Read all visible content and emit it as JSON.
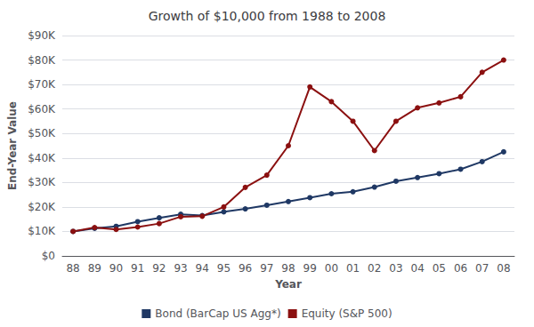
{
  "chart_data": {
    "type": "line",
    "title": "Growth of $10,000 from 1988 to 2008",
    "xlabel": "Year",
    "ylabel": "End-Year Value",
    "categories": [
      "88",
      "89",
      "90",
      "91",
      "92",
      "93",
      "94",
      "95",
      "96",
      "97",
      "98",
      "99",
      "00",
      "01",
      "02",
      "03",
      "04",
      "05",
      "06",
      "07",
      "08"
    ],
    "series": [
      {
        "name": "Bond (BarCap US Agg*)",
        "color": "#1f3864",
        "marker": "circle",
        "values": [
          10000,
          11290,
          12080,
          13990,
          15550,
          17000,
          16500,
          18000,
          19200,
          20700,
          22200,
          23800,
          25400,
          26200,
          28100,
          30500,
          32000,
          33600,
          35400,
          38500,
          42500
        ]
      },
      {
        "name": "Equity (S&P 500)",
        "color": "#8b1010",
        "marker": "circle",
        "values": [
          10000,
          11600,
          10800,
          11800,
          13200,
          16000,
          16200,
          20000,
          28000,
          33000,
          45000,
          69000,
          63000,
          55000,
          43000,
          55000,
          60500,
          62500,
          65000,
          75000,
          80000
        ]
      }
    ],
    "ylim": [
      0,
      90000
    ],
    "yticks": [
      {
        "value": 0,
        "label": "$0"
      },
      {
        "value": 10000,
        "label": "$10K"
      },
      {
        "value": 20000,
        "label": "$20K"
      },
      {
        "value": 30000,
        "label": "$30K"
      },
      {
        "value": 40000,
        "label": "$40K"
      },
      {
        "value": 50000,
        "label": "$50K"
      },
      {
        "value": 60000,
        "label": "$60K"
      },
      {
        "value": 70000,
        "label": "$70K"
      },
      {
        "value": 80000,
        "label": "$80K"
      },
      {
        "value": 90000,
        "label": "$90K"
      }
    ],
    "grid": true,
    "legend": "bottom"
  }
}
